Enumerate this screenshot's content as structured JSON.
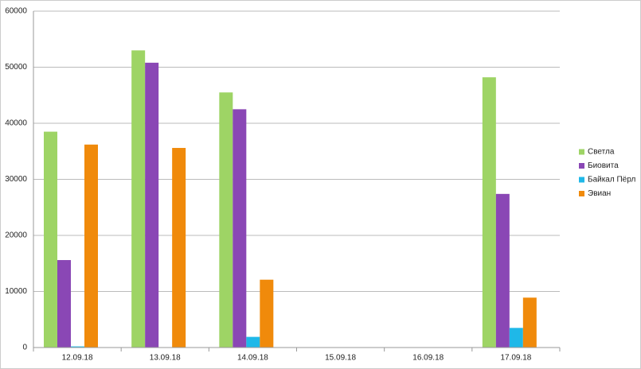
{
  "chart_data": {
    "type": "bar",
    "categories": [
      "12.09.18",
      "13.09.18",
      "14.09.18",
      "15.09.18",
      "16.09.18",
      "17.09.18"
    ],
    "series": [
      {
        "name": "Светла",
        "color": "#9ed465",
        "values": [
          38500,
          53000,
          45500,
          null,
          null,
          48200
        ]
      },
      {
        "name": "Биовита",
        "color": "#8a47b5",
        "values": [
          15600,
          50800,
          42500,
          null,
          null,
          27400
        ]
      },
      {
        "name": "Байкал Пёрл",
        "color": "#1fb8e8",
        "values": [
          200,
          0,
          1900,
          null,
          null,
          3500
        ]
      },
      {
        "name": "Эвиан",
        "color": "#f08a0b",
        "values": [
          36200,
          35600,
          12100,
          null,
          null,
          8900
        ]
      }
    ],
    "ylim": [
      0,
      60000
    ],
    "yticks": [
      0,
      10000,
      20000,
      30000,
      40000,
      50000,
      60000
    ],
    "grid": true,
    "legend": "right"
  }
}
